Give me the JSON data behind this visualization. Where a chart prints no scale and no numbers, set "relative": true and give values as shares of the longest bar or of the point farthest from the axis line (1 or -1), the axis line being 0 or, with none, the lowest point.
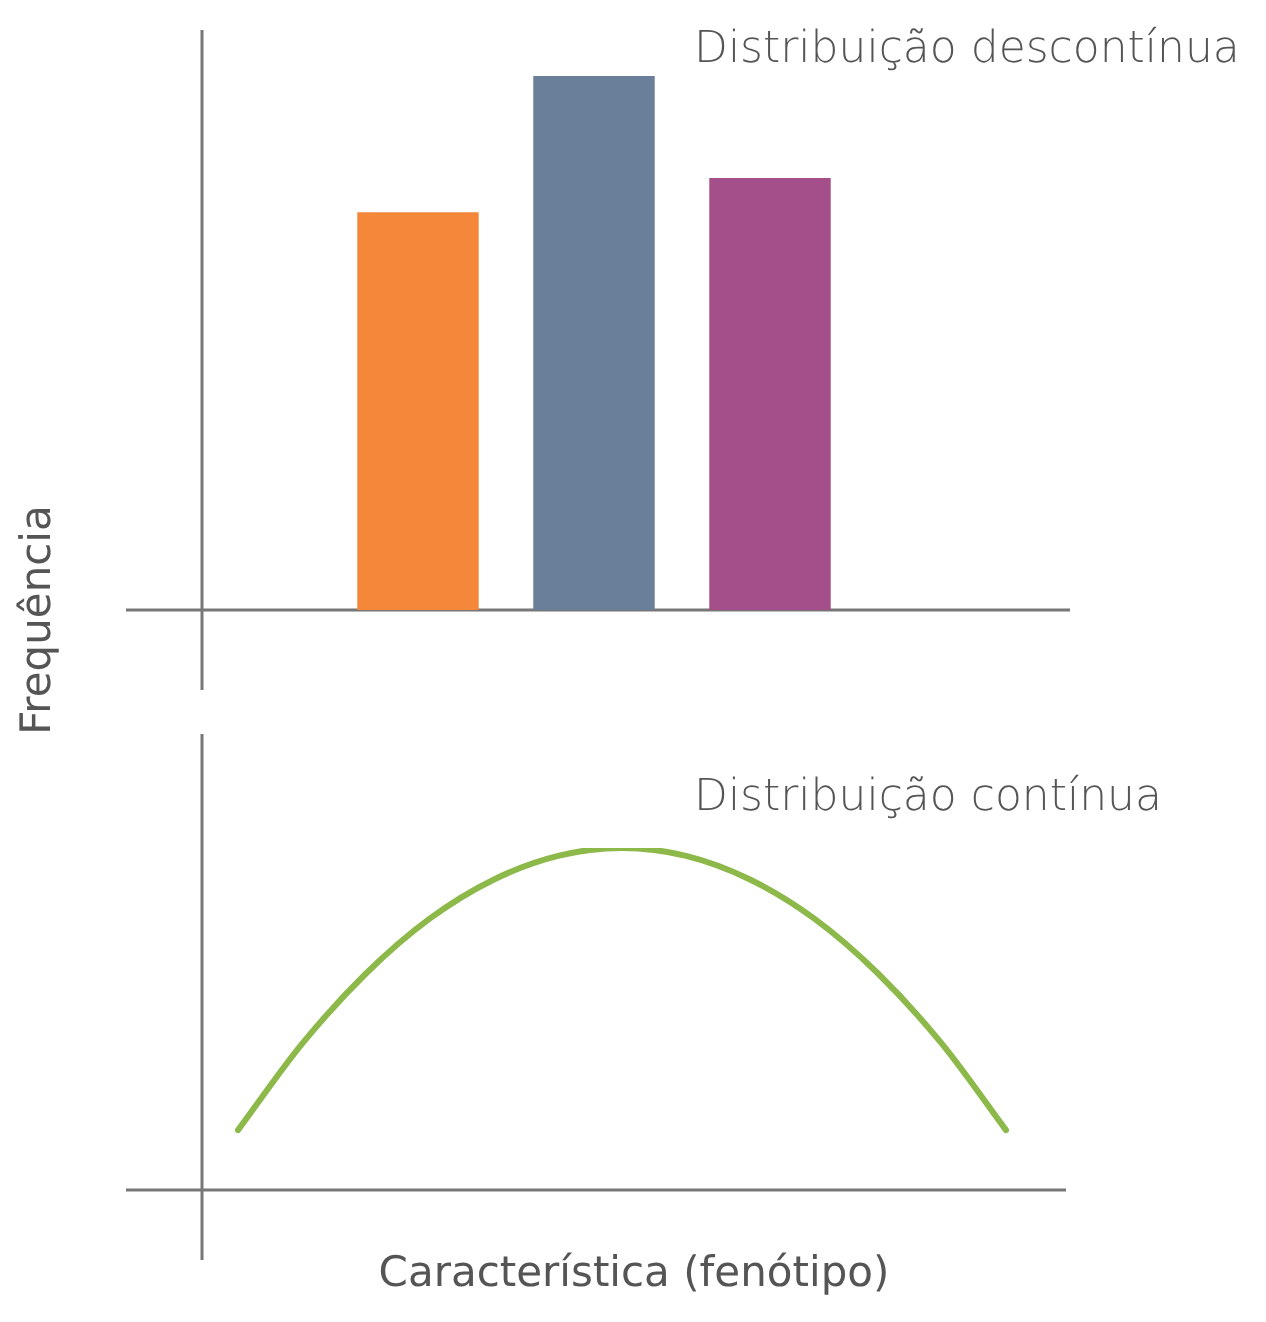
{
  "chart_data": [
    {
      "type": "bar",
      "title": "Distribuição descontínua",
      "ylabel": "Frequência",
      "relative": true,
      "categories": [
        null,
        null,
        null
      ],
      "values": [
        0.745,
        1,
        0.809
      ],
      "colors": [
        "#f5873a",
        "#6a7f99",
        "#a54f8a"
      ]
    },
    {
      "type": "line",
      "title": "Distribuição contínua",
      "xlabel": "Característica (fenótipo)",
      "relative": true,
      "categories": [
        null,
        null,
        null,
        null,
        null,
        null,
        null,
        null,
        null,
        null,
        null,
        null,
        null
      ],
      "values": [
        0.175,
        0.427,
        0.633,
        0.794,
        0.908,
        0.977,
        1,
        0.977,
        0.908,
        0.794,
        0.633,
        0.427,
        0.175
      ],
      "color": "#8db84a"
    }
  ]
}
